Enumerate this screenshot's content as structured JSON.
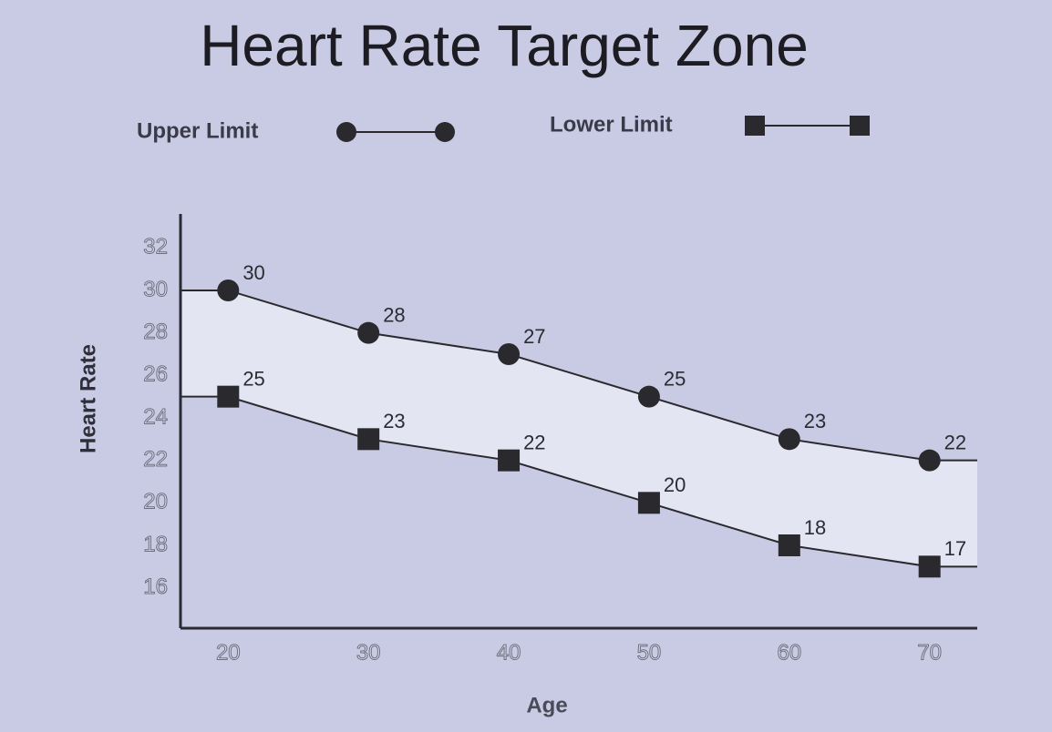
{
  "chart_data": {
    "type": "line",
    "title": "Heart Rate Target Zone",
    "x_label": "Age",
    "y_label": "Heart Rate",
    "x": [
      20,
      30,
      40,
      50,
      60,
      70
    ],
    "series": [
      {
        "name": "Upper Limit",
        "color": "#2a2a2e",
        "marker": "circle",
        "values": [
          30,
          28,
          27,
          25,
          23,
          22
        ]
      },
      {
        "name": "Lower Limit",
        "color": "#2a2a2e",
        "marker": "square",
        "values": [
          25,
          23,
          22,
          20,
          18,
          17
        ]
      }
    ],
    "xlim": [
      16.6,
      73.4
    ],
    "ylim": [
      14.1,
      33.6
    ],
    "xticks": [
      20,
      30,
      40,
      50,
      60,
      70
    ],
    "yticks": [
      16,
      18,
      20,
      22,
      24,
      26,
      28,
      30,
      32
    ],
    "band_fill": "#e3e5f2"
  }
}
